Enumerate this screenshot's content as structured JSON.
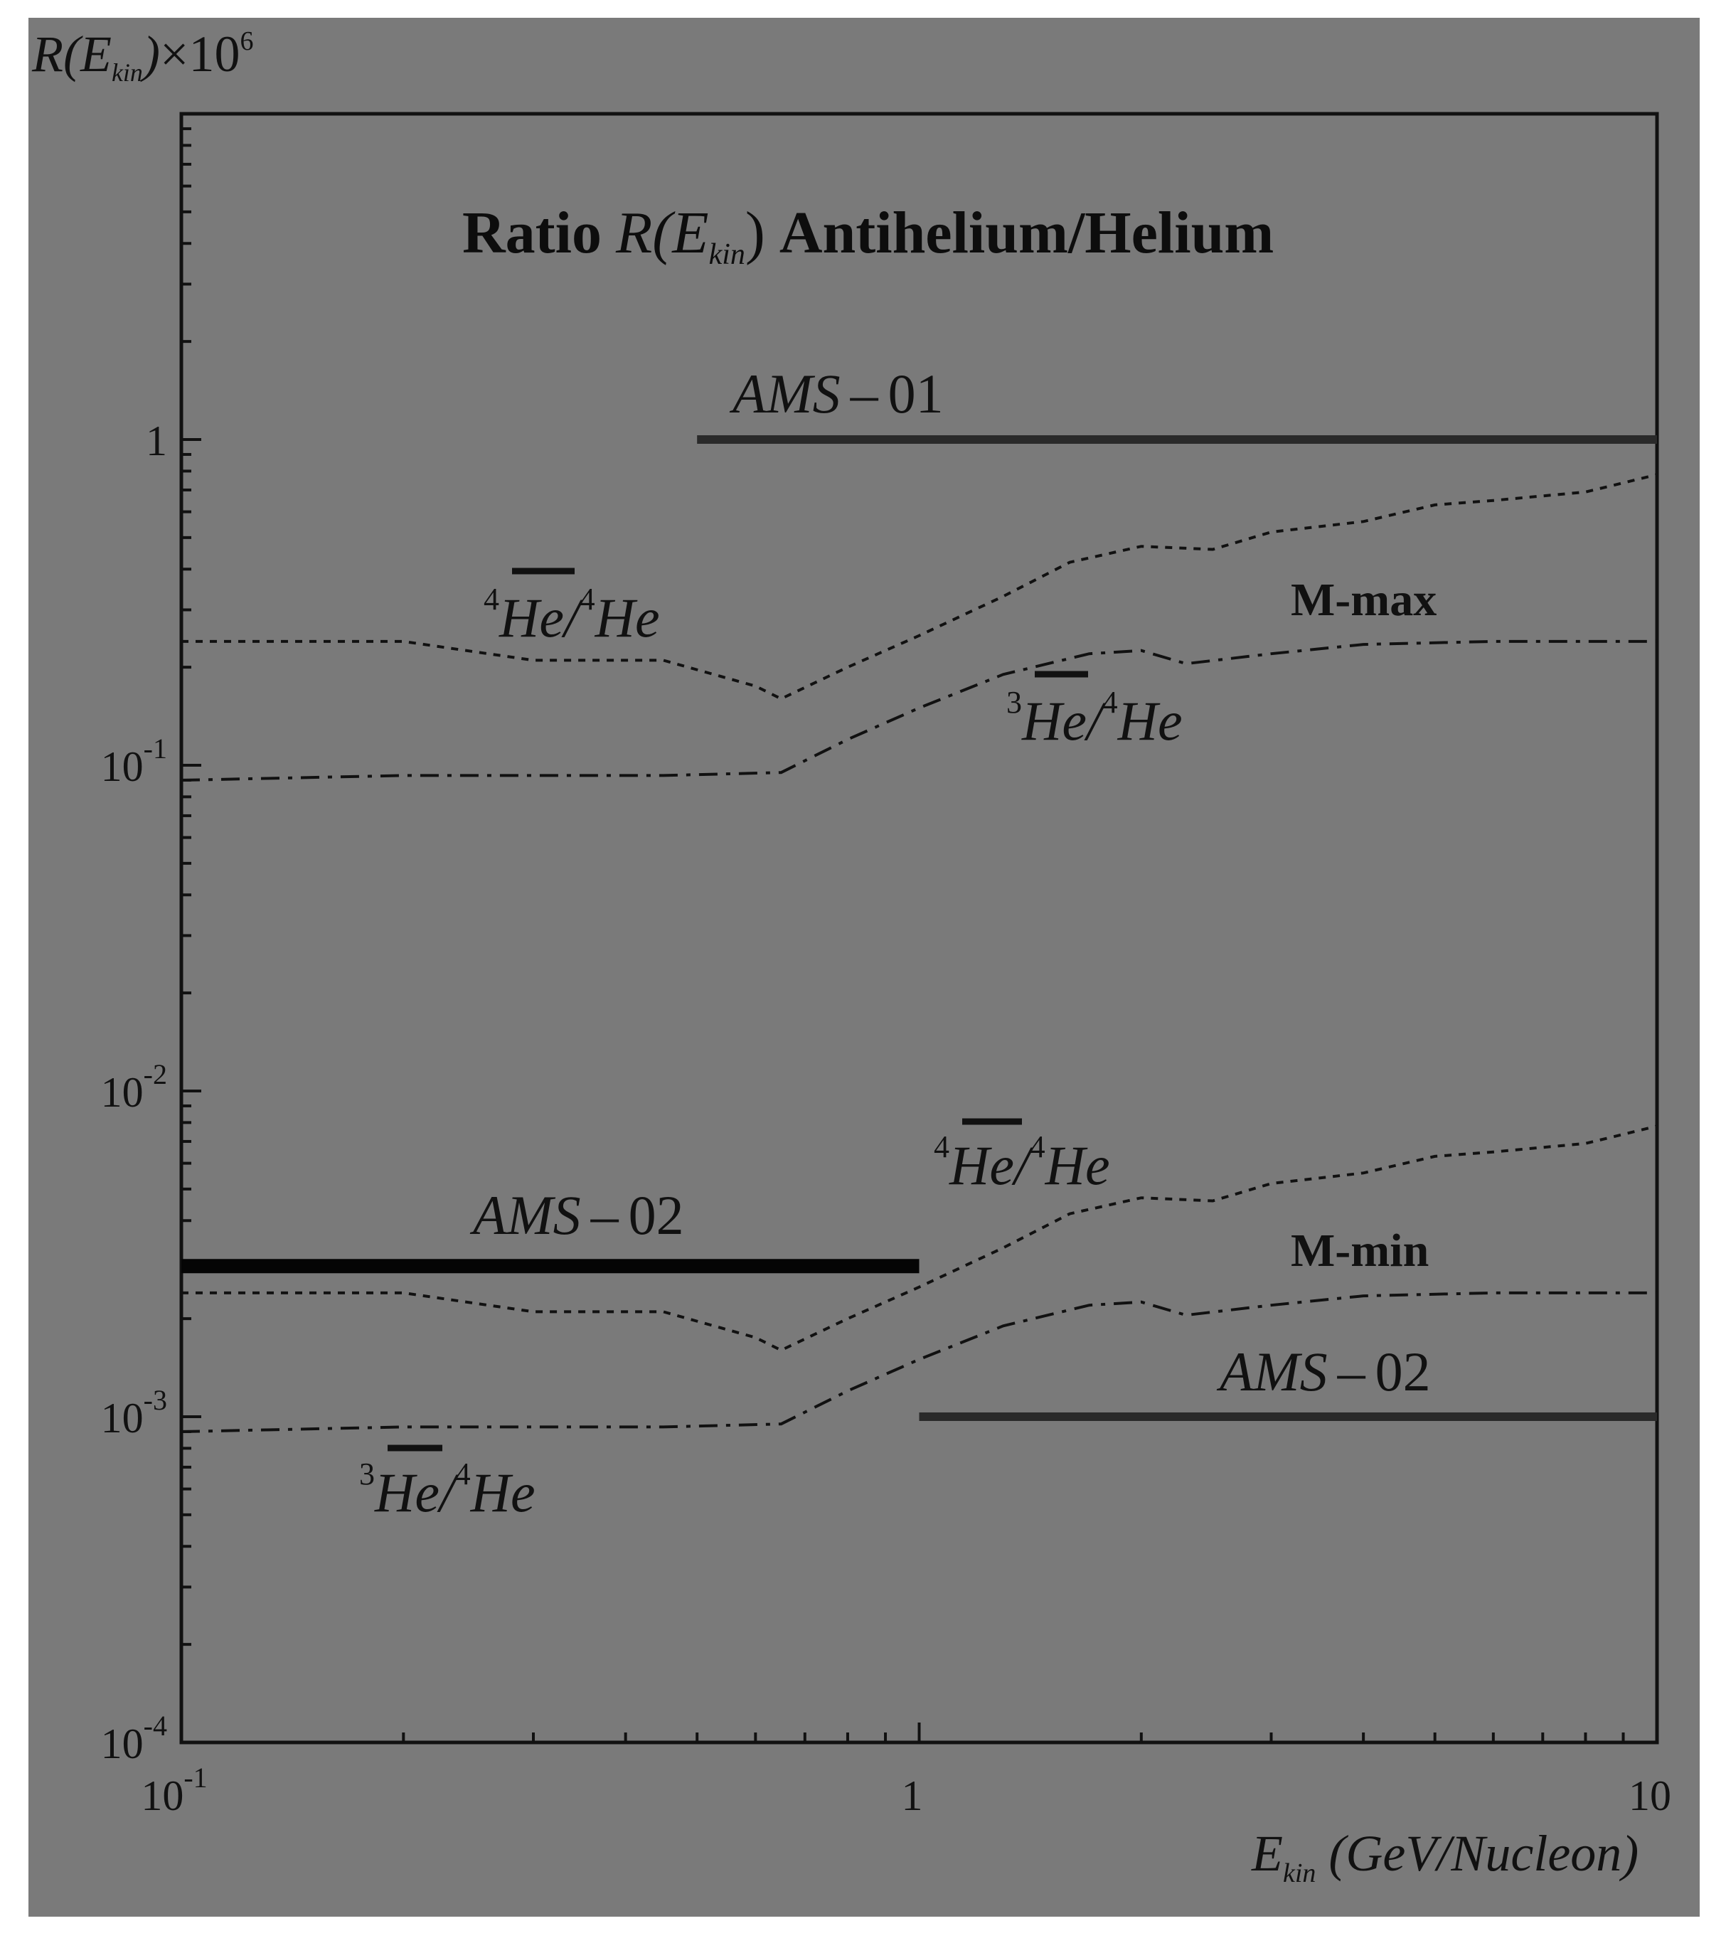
{
  "chart_data": {
    "type": "line",
    "title": "Ratio R(E_kin) Antihelium/Helium",
    "title_parts": {
      "prefix": "Ratio",
      "var": "R",
      "sub": "kin",
      "suffix": "Antihelium/Helium"
    },
    "xlabel": "E_kin (GeV/Nucleon)",
    "xlabel_parts": {
      "var": "E",
      "sub": "kin",
      "units": "(GeV/Nucleon)"
    },
    "ylabel": "R(E_kin)×10^6",
    "ylabel_parts": {
      "var": "R",
      "sub": "kin",
      "mult": "×10",
      "exp": "6"
    },
    "x_scale": "log",
    "y_scale": "log",
    "xlim": [
      0.1,
      10
    ],
    "ylim": [
      0.0001,
      10
    ],
    "x_ticks": [
      {
        "value": 0.1,
        "base": "10",
        "exp": "-1"
      },
      {
        "value": 1,
        "base": "1",
        "exp": ""
      },
      {
        "value": 10,
        "base": "10",
        "exp": ""
      }
    ],
    "y_ticks": [
      {
        "value": 0.0001,
        "base": "10",
        "exp": "-4"
      },
      {
        "value": 0.001,
        "base": "10",
        "exp": "-3"
      },
      {
        "value": 0.01,
        "base": "10",
        "exp": "-2"
      },
      {
        "value": 0.1,
        "base": "10",
        "exp": "-1"
      },
      {
        "value": 1,
        "base": "1",
        "exp": ""
      }
    ],
    "colors": {
      "background": "#7a7a7a",
      "ink": "#111111"
    },
    "series": [
      {
        "name": "4He-bar/4He (M-max)",
        "style": "dotted",
        "x": [
          0.1,
          0.2,
          0.3,
          0.45,
          0.6,
          0.65,
          0.8,
          1.0,
          1.3,
          1.6,
          2.0,
          2.5,
          3.0,
          4.0,
          5.0,
          6.0,
          8.0,
          10.0
        ],
        "y": [
          0.24,
          0.24,
          0.21,
          0.21,
          0.175,
          0.16,
          0.2,
          0.25,
          0.33,
          0.42,
          0.47,
          0.46,
          0.52,
          0.56,
          0.63,
          0.65,
          0.69,
          0.78
        ]
      },
      {
        "name": "3He-bar/4He (M-max)",
        "style": "dashdot",
        "x": [
          0.1,
          0.2,
          0.3,
          0.45,
          0.65,
          0.8,
          1.0,
          1.3,
          1.7,
          2.0,
          2.3,
          3.0,
          4.0,
          6.0,
          10.0
        ],
        "y": [
          0.09,
          0.093,
          0.093,
          0.093,
          0.095,
          0.12,
          0.15,
          0.19,
          0.22,
          0.225,
          0.205,
          0.22,
          0.235,
          0.24,
          0.24
        ]
      },
      {
        "name": "4He-bar/4He (M-min)",
        "style": "dotted",
        "x": [
          0.1,
          0.2,
          0.3,
          0.45,
          0.6,
          0.65,
          0.8,
          1.0,
          1.3,
          1.6,
          2.0,
          2.5,
          3.0,
          4.0,
          5.0,
          6.0,
          8.0,
          10.0
        ],
        "y": [
          0.0024,
          0.0024,
          0.0021,
          0.0021,
          0.00175,
          0.0016,
          0.002,
          0.0025,
          0.0033,
          0.0042,
          0.0047,
          0.0046,
          0.0052,
          0.0056,
          0.0063,
          0.0065,
          0.0069,
          0.0078
        ]
      },
      {
        "name": "3He-bar/4He (M-min)",
        "style": "dashdot",
        "x": [
          0.1,
          0.2,
          0.3,
          0.45,
          0.65,
          0.8,
          1.0,
          1.3,
          1.7,
          2.0,
          2.3,
          3.0,
          4.0,
          6.0,
          10.0
        ],
        "y": [
          0.0009,
          0.00093,
          0.00093,
          0.00093,
          0.00095,
          0.0012,
          0.0015,
          0.0019,
          0.0022,
          0.00225,
          0.00205,
          0.0022,
          0.00235,
          0.0024,
          0.0024
        ]
      }
    ],
    "limits": [
      {
        "name": "AMS-01",
        "label_main": "AMS",
        "label_suffix": "01",
        "x_from": 0.5,
        "x_to": 10,
        "y": 1.0,
        "weight": "medium"
      },
      {
        "name": "AMS-02 (low energy)",
        "label_main": "AMS",
        "label_suffix": "02",
        "x_from": 0.1,
        "x_to": 1.0,
        "y": 0.0029,
        "weight": "heavy"
      },
      {
        "name": "AMS-02 (high energy)",
        "label_main": "AMS",
        "label_suffix": "02",
        "x_from": 1.0,
        "x_to": 10,
        "y": 0.001,
        "weight": "medium"
      }
    ],
    "annotations": {
      "he4_top": {
        "pre": "4",
        "num": "He",
        "mid": "/",
        "pre2": "4",
        "den": "He"
      },
      "he3_top": {
        "pre": "3",
        "num": "He",
        "mid": "/",
        "pre2": "4",
        "den": "He"
      },
      "he4_bottom": {
        "pre": "4",
        "num": "He",
        "mid": "/",
        "pre2": "4",
        "den": "He"
      },
      "he3_bottom": {
        "pre": "3",
        "num": "He",
        "mid": "/",
        "pre2": "4",
        "den": "He"
      },
      "m_max": "M-max",
      "m_min": "M-min"
    }
  }
}
